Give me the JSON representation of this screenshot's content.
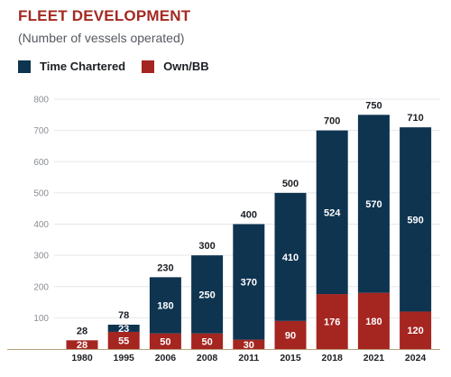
{
  "title": "FLEET DEVELOPMENT",
  "subtitle": "(Number of vessels operated)",
  "legend": [
    {
      "label": "Time Chartered",
      "color": "#0e3450"
    },
    {
      "label": "Own/BB",
      "color": "#a52520"
    }
  ],
  "chart_data": {
    "type": "bar",
    "stacked": true,
    "title": "FLEET DEVELOPMENT",
    "subtitle": "(Number of vessels operated)",
    "categories": [
      "1980",
      "1995",
      "2006",
      "2008",
      "2011",
      "2015",
      "2018",
      "2021",
      "2024"
    ],
    "series": [
      {
        "name": "Own/BB",
        "color": "#a52520",
        "values": [
          28,
          55,
          50,
          50,
          30,
          90,
          176,
          180,
          120
        ]
      },
      {
        "name": "Time Chartered",
        "color": "#0e3450",
        "values": [
          0,
          23,
          180,
          250,
          370,
          410,
          524,
          570,
          590
        ]
      }
    ],
    "totals": [
      28,
      78,
      230,
      300,
      400,
      500,
      700,
      750,
      710
    ],
    "ylim": [
      0,
      800
    ],
    "yticks": [
      100,
      200,
      300,
      400,
      500,
      600,
      700,
      800
    ],
    "grid": true,
    "legend_position": "top-left"
  }
}
